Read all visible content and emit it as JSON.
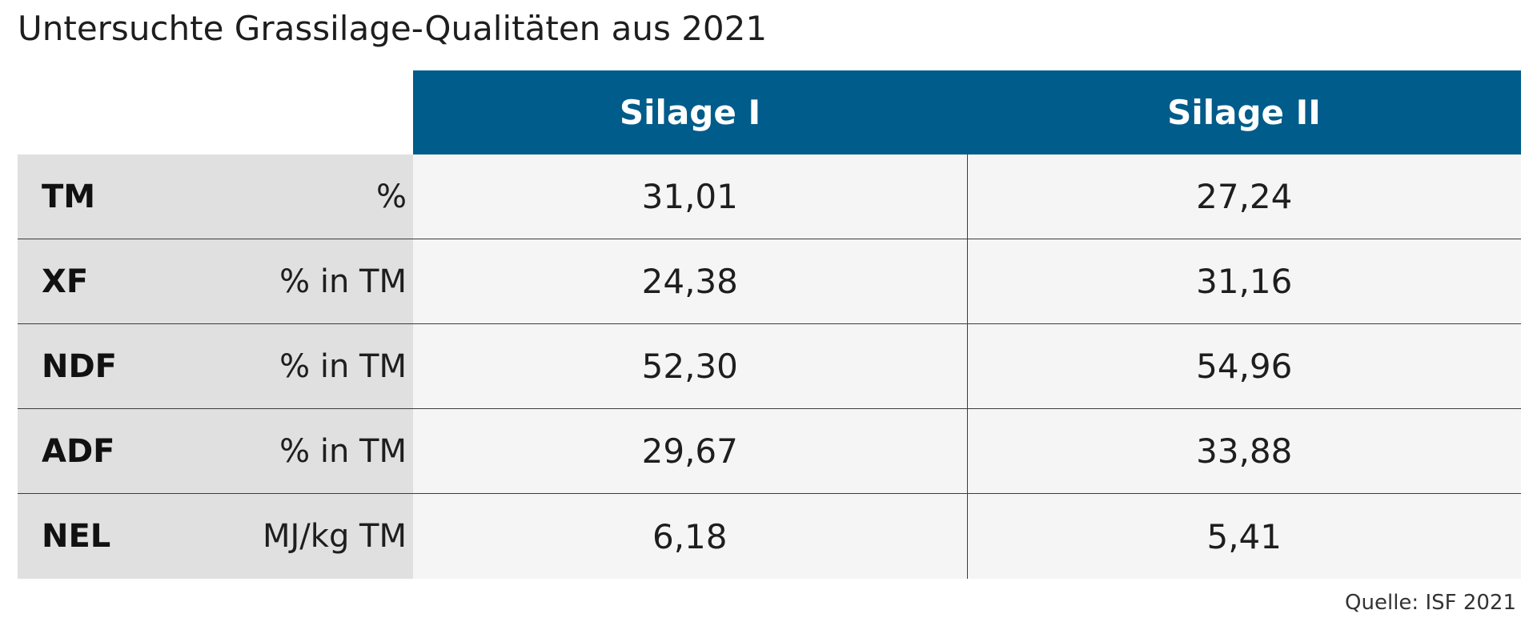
{
  "chart_data": {
    "type": "table",
    "title": "Untersuchte Grassilage-Qualitäten aus 2021",
    "columns": [
      "Silage I",
      "Silage II"
    ],
    "rows": [
      {
        "name": "TM",
        "unit": "%",
        "values": [
          "31,01",
          "27,24"
        ]
      },
      {
        "name": "XF",
        "unit": "% in TM",
        "values": [
          "24,38",
          "31,16"
        ]
      },
      {
        "name": "NDF",
        "unit": "% in TM",
        "values": [
          "52,30",
          "54,96"
        ]
      },
      {
        "name": "ADF",
        "unit": "% in TM",
        "values": [
          "29,67",
          "33,88"
        ]
      },
      {
        "name": "NEL",
        "unit": "MJ/kg TM",
        "values": [
          "6,18",
          "5,41"
        ]
      }
    ],
    "source": "Quelle: ISF 2021"
  },
  "colors": {
    "header_background": "#005c8a",
    "header_text": "#ffffff",
    "label_background": "#e0e0e0",
    "value_background": "#f5f5f5"
  }
}
